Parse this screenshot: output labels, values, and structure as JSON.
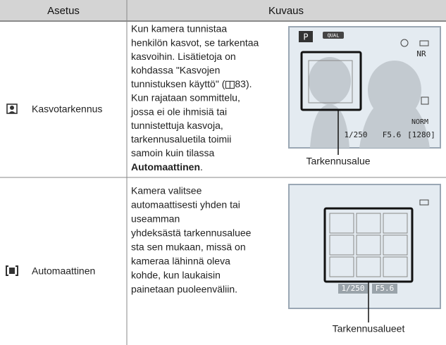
{
  "header": {
    "col1": "Asetus",
    "col2": "Kuvaus"
  },
  "rows": [
    {
      "label": "Kasvotarkennus",
      "description_lines": [
        "Kun kamera tunnistaa",
        "henkilön kasvot, se tarkentaa",
        "kasvoihin. Lisätietoja on",
        "kohdassa \"Kasvojen",
        "tunnistuksen käyttö\" (",
        "Kun rajataan sommittelu,",
        "jossa ei ole ihmisiä tai",
        "tunnistettuja kasvoja,",
        "tarkennusaluetila toimii",
        "samoin kuin tilassa"
      ],
      "description_ref": "83).",
      "description_bold": "Automaattinen",
      "description_end": ".",
      "screen": {
        "mode": "P",
        "quality": "QUAL",
        "noise": "NR",
        "image_mode": "NORM",
        "shutter": "1/250",
        "aperture": "F5.6",
        "shots": "[1280]"
      },
      "caption": "Tarkennusalue"
    },
    {
      "label": "Automaattinen",
      "description_lines": [
        "Kamera valitsee",
        "automaattisesti yhden tai",
        "useamman",
        "yhdeksästä tarkennusaluee",
        "sta sen mukaan, missä on",
        "kameraa lähinnä oleva",
        "kohde, kun laukaisin",
        "painetaan puoleenväliin."
      ],
      "screen": {
        "shutter": "1/250",
        "aperture": "F5.6"
      },
      "caption": "Tarkennusalueet"
    }
  ]
}
